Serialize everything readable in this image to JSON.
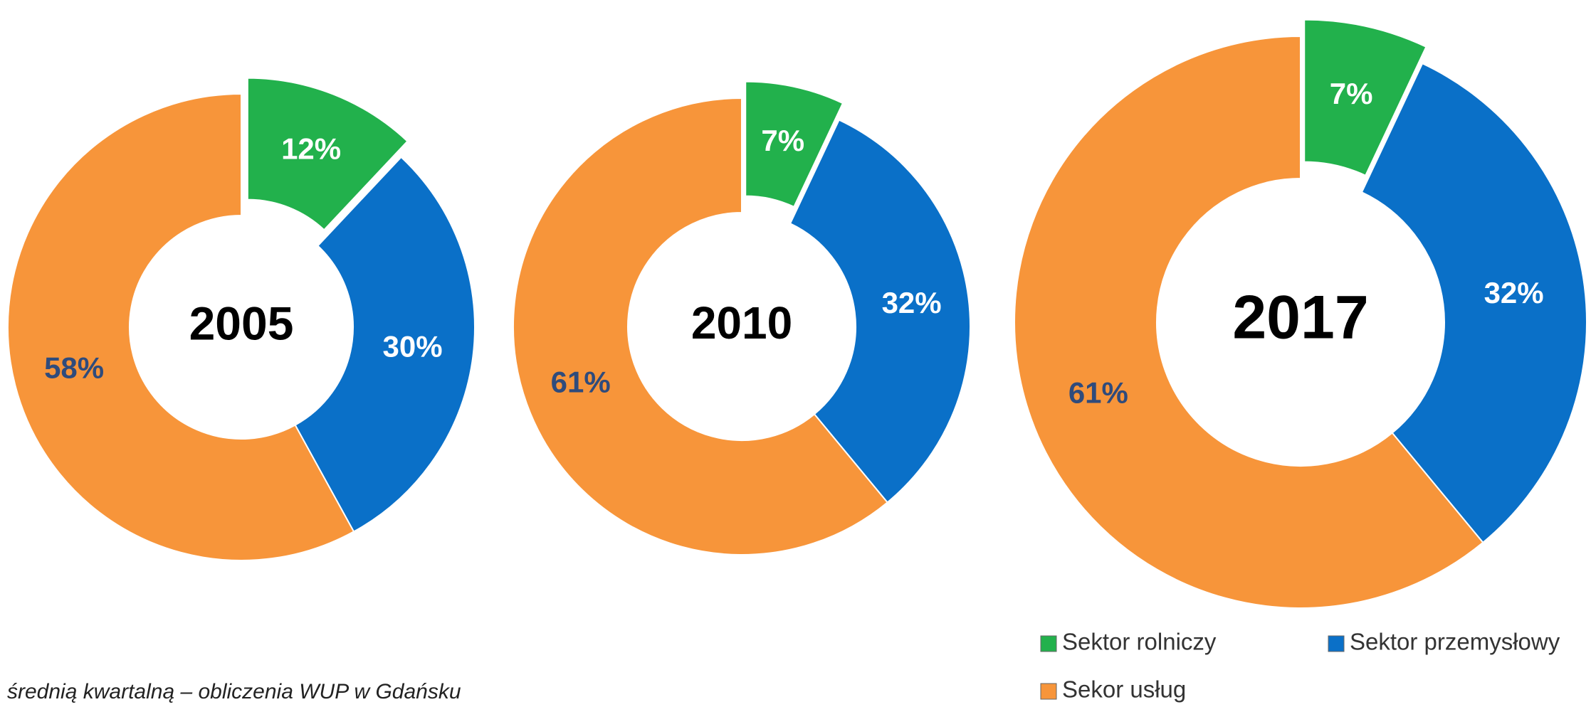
{
  "chart_data": [
    {
      "type": "pie",
      "title": "2005",
      "categories": [
        "Sektor rolniczy",
        "Sektor przemysłowy",
        "Sekor usług"
      ],
      "values": [
        12,
        30,
        58
      ],
      "value_labels": [
        "12%",
        "30%",
        "58%"
      ],
      "colors": [
        "#22b14c",
        "#0a70c8",
        "#f7953a"
      ]
    },
    {
      "type": "pie",
      "title": "2010",
      "categories": [
        "Sektor rolniczy",
        "Sektor przemysłowy",
        "Sekor usług"
      ],
      "values": [
        7,
        32,
        61
      ],
      "value_labels": [
        "7%",
        "32%",
        "61%"
      ],
      "colors": [
        "#22b14c",
        "#0a70c8",
        "#f7953a"
      ]
    },
    {
      "type": "pie",
      "title": "2017",
      "categories": [
        "Sektor rolniczy",
        "Sektor przemysłowy",
        "Sekor usług"
      ],
      "values": [
        7,
        32,
        61
      ],
      "value_labels": [
        "7%",
        "32%",
        "61%"
      ],
      "colors": [
        "#22b14c",
        "#0a70c8",
        "#f7953a"
      ]
    }
  ],
  "footnote": "średnią kwartalną – obliczenia WUP w Gdańsku"
}
